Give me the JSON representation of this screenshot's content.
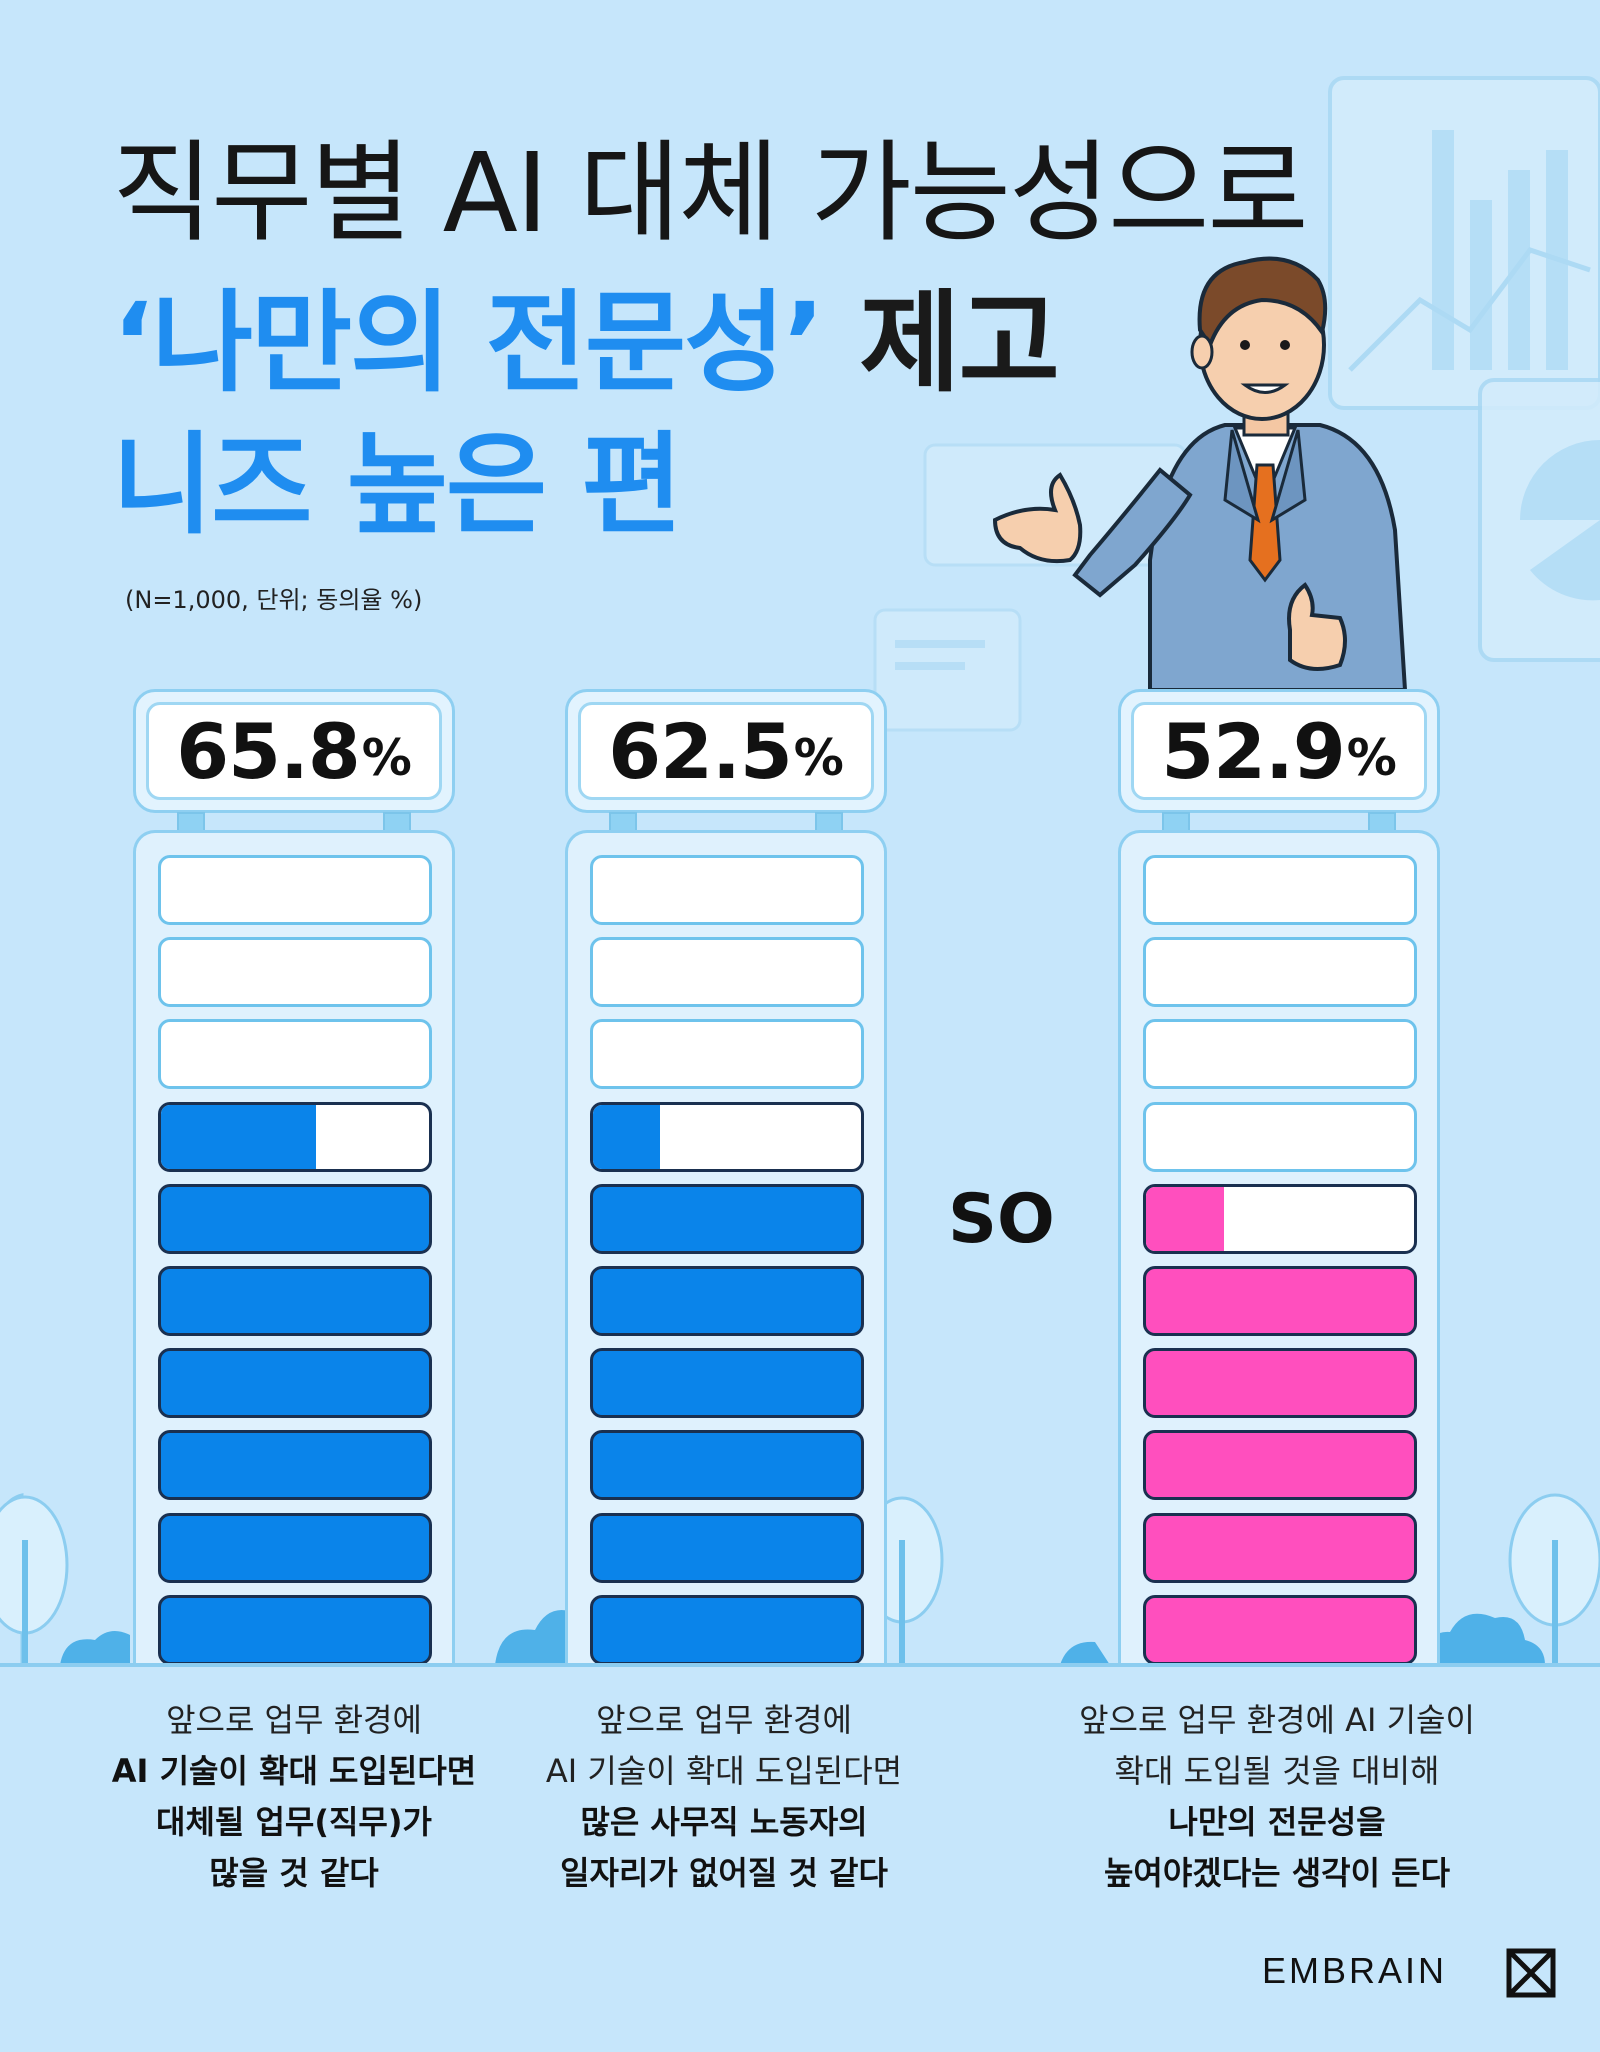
{
  "title": {
    "line1": "직무별 AI 대체 가능성으로",
    "line2_highlight": "‘나만의 전문성’",
    "line2_tail": " 제고",
    "line3": "니즈 높은 편"
  },
  "note": "(N=1,000, 단위; 동의율 %)",
  "connector_label": "SO",
  "brand": {
    "name": "EMBRAIN"
  },
  "colors": {
    "blue": "#0a84ea",
    "pink": "#ff4fbe",
    "background": "#c6e6fb"
  },
  "chart_data": {
    "type": "bar",
    "unit": "%",
    "segments_per_bar": 10,
    "categories": [
      "c1",
      "c2",
      "c3"
    ],
    "series": [
      {
        "values": [
          65.8,
          62.5,
          52.9
        ]
      }
    ],
    "ylim": [
      0,
      100
    ],
    "value_labels": [
      {
        "number": "65.8",
        "unit": "%"
      },
      {
        "number": "62.5",
        "unit": "%"
      },
      {
        "number": "52.9",
        "unit": "%"
      }
    ],
    "bar_colors": [
      "#0a84ea",
      "#0a84ea",
      "#ff4fbe"
    ],
    "captions": [
      [
        {
          "text": "앞으로 업무 환경에",
          "bold": false
        },
        {
          "text": "AI 기술이 확대 도입된다면",
          "bold": true
        },
        {
          "text": "대체될 업무(직무)가",
          "bold": true
        },
        {
          "text": "많을 것 같다",
          "bold": true
        }
      ],
      [
        {
          "text": "앞으로 업무 환경에",
          "bold": false
        },
        {
          "text": "AI 기술이 확대 도입된다면",
          "bold": false
        },
        {
          "text": "많은 사무직 노동자의",
          "bold": true
        },
        {
          "text": "일자리가 없어질 것 같다",
          "bold": true
        }
      ],
      [
        {
          "text": "앞으로 업무 환경에 AI 기술이",
          "bold": false
        },
        {
          "text": "확대 도입될 것을 대비해",
          "bold": false
        },
        {
          "text": "나만의 전문성을",
          "bold": true
        },
        {
          "text": "높여야겠다는 생각이 든다",
          "bold": true
        }
      ]
    ]
  }
}
